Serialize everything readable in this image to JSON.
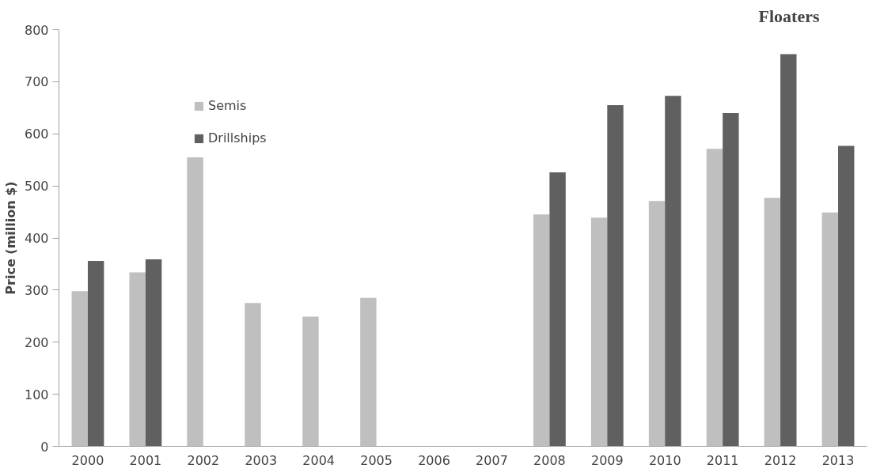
{
  "chart_data": {
    "type": "bar",
    "title": "Floaters",
    "ylabel": "Price (million $)",
    "categories": [
      "2000",
      "2001",
      "2002",
      "2003",
      "2004",
      "2005",
      "2006",
      "2007",
      "2008",
      "2009",
      "2010",
      "2011",
      "2012",
      "2013"
    ],
    "series": [
      {
        "name": "Semis",
        "color": "#bfbfbf",
        "values": [
          298,
          334,
          555,
          275,
          249,
          285,
          null,
          null,
          445,
          439,
          471,
          571,
          477,
          449
        ]
      },
      {
        "name": "Drillships",
        "color": "#606060",
        "values": [
          356,
          359,
          null,
          null,
          null,
          null,
          null,
          null,
          526,
          655,
          673,
          640,
          753,
          577
        ]
      }
    ],
    "ylim": [
      0,
      800
    ],
    "yticks": [
      0,
      100,
      200,
      300,
      400,
      500,
      600,
      700,
      800
    ],
    "grid": false,
    "legend": "top left"
  }
}
